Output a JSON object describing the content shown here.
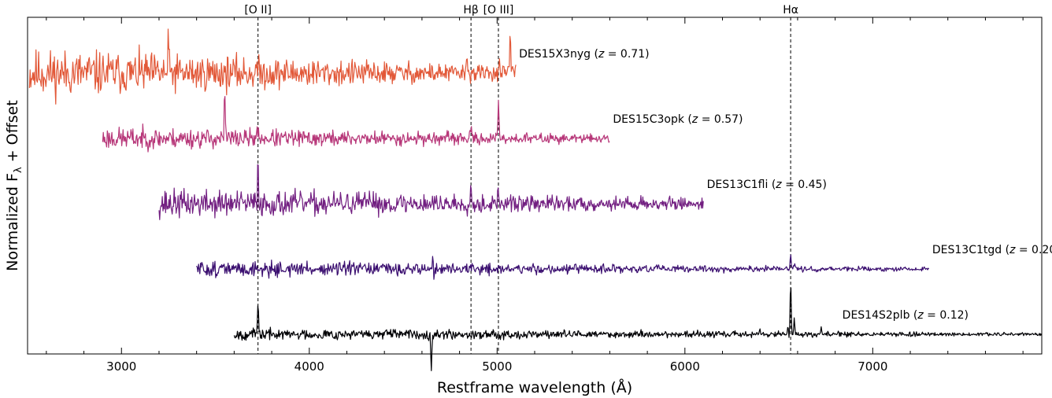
{
  "chart_data": {
    "type": "line",
    "title": "",
    "xlabel": "Restframe wavelength (Å)",
    "ylabel_main": "Normalized F",
    "ylabel_sub": "λ",
    "ylabel_rest": " + Offset",
    "xlim": [
      2500,
      7900
    ],
    "x_major_ticks": [
      3000,
      4000,
      5000,
      6000,
      7000
    ],
    "x_tick_labels": [
      "3000",
      "4000",
      "5000",
      "6000",
      "7000"
    ],
    "x_minor_step": 200,
    "emission_lines": [
      {
        "label": "[O II]",
        "wavelength": 3727
      },
      {
        "label": "Hβ",
        "wavelength": 4861
      },
      {
        "label": "[O III]",
        "wavelength": 5007
      },
      {
        "label": "Hα",
        "wavelength": 6563
      }
    ],
    "series": [
      {
        "name": "DES15X3nyg",
        "z": "0.71",
        "color": "#e25838",
        "x_start": 2510,
        "x_end": 5100,
        "offset": 4.0,
        "noise_blue": 0.3,
        "noise_red": 0.09,
        "seed": 11,
        "features": [
          {
            "w": 3250,
            "h": 0.55
          },
          {
            "w": 5070,
            "h": 0.75
          },
          {
            "w": 5010,
            "h": 0.2
          },
          {
            "w": 4840,
            "h": 0.3
          },
          {
            "w": 3720,
            "h": 0.15
          }
        ]
      },
      {
        "name": "DES15C3opk",
        "z": "0.57",
        "color": "#b73779",
        "x_start": 2900,
        "x_end": 5600,
        "offset": 3.0,
        "noise_blue": 0.14,
        "noise_red": 0.05,
        "seed": 23,
        "features": [
          {
            "w": 3550,
            "h": 0.8
          },
          {
            "w": 5007,
            "h": 0.55
          },
          {
            "w": 4861,
            "h": 0.15
          },
          {
            "w": 3727,
            "h": 0.2
          }
        ]
      },
      {
        "name": "DES13C1fli",
        "z": "0.45",
        "color": "#721f81",
        "x_start": 3200,
        "x_end": 6100,
        "offset": 2.0,
        "noise_blue": 0.18,
        "noise_red": 0.07,
        "seed": 37,
        "features": [
          {
            "w": 3727,
            "h": 0.75
          },
          {
            "w": 4861,
            "h": 0.3
          },
          {
            "w": 5007,
            "h": 0.2
          },
          {
            "w": 4340,
            "h": 0.18
          }
        ]
      },
      {
        "name": "DES13C1tgd",
        "z": "0.20",
        "color": "#3b0f70",
        "x_start": 3400,
        "x_end": 7300,
        "offset": 1.0,
        "noise_blue": 0.1,
        "noise_red": 0.02,
        "seed": 51,
        "features": [
          {
            "w": 4660,
            "h": 1.0
          },
          {
            "w": 4661,
            "h": -1.0
          },
          {
            "w": 6563,
            "h": 0.25
          },
          {
            "w": 6583,
            "h": 0.1
          }
        ]
      },
      {
        "name": "DES14S2plb",
        "z": "0.12",
        "color": "#000004",
        "x_start": 3600,
        "x_end": 7900,
        "offset": 0.0,
        "noise_blue": 0.07,
        "noise_red": 0.02,
        "seed": 67,
        "features": [
          {
            "w": 3727,
            "h": 0.55
          },
          {
            "w": 6563,
            "h": 0.9
          },
          {
            "w": 6583,
            "h": 0.25
          },
          {
            "w": 6548,
            "h": 0.15
          },
          {
            "w": 6725,
            "h": 0.12
          },
          {
            "w": 4650,
            "h": -0.75
          },
          {
            "w": 4651,
            "h": 0.2
          },
          {
            "w": 6400,
            "h": 0.08
          }
        ]
      }
    ]
  }
}
